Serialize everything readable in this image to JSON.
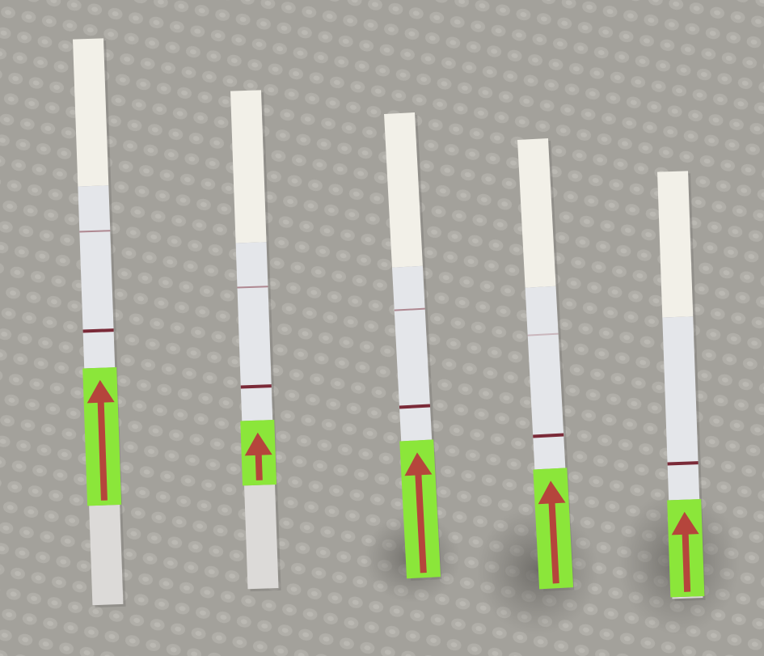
{
  "scene": {
    "background_color": "#a3a19b",
    "strip_handle_color": "#f2f0e8",
    "strip_window_color": "#e4e6ea",
    "strip_pad_color": "#dcdad8",
    "sample_zone_color": "#8be63a",
    "arrow_color": "#b5453c",
    "line_color": "#7a2a38"
  },
  "strips": [
    {
      "id": 1,
      "control_line": "visible",
      "test_line": "faint"
    },
    {
      "id": 2,
      "control_line": "visible",
      "test_line": "faint"
    },
    {
      "id": 3,
      "control_line": "visible",
      "test_line": "faint"
    },
    {
      "id": 4,
      "control_line": "visible",
      "test_line": "very faint"
    },
    {
      "id": 5,
      "control_line": "visible",
      "test_line": "none"
    }
  ]
}
